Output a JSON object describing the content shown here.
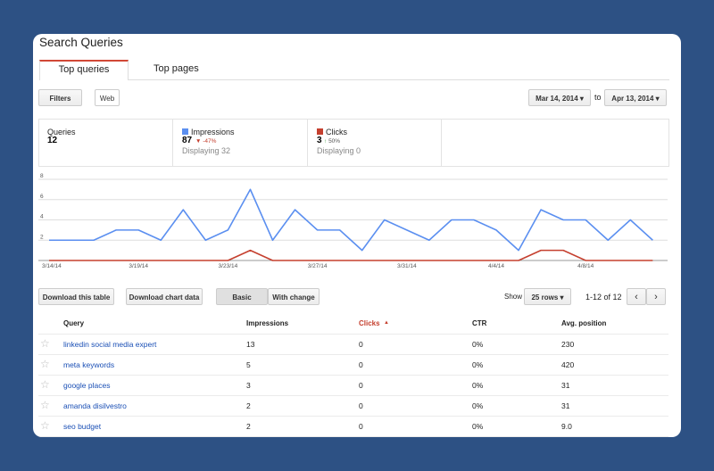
{
  "header": {
    "title": "Search Queries",
    "tabs": [
      "Top queries",
      "Top pages"
    ]
  },
  "toolbar": {
    "filters": "Filters",
    "web": "Web",
    "start_date": "Mar 14, 2014",
    "to": "to",
    "end_date": "Apr 13, 2014"
  },
  "summary": {
    "queries_label": "Queries",
    "queries": "12",
    "impressions": "87",
    "impressions_change": "-47%",
    "impressions_displaying": "Displaying 32",
    "clicks": "3",
    "clicks_change": "50%",
    "clicks_displaying": "Displaying 0"
  },
  "chart_data": {
    "type": "line",
    "categories": [
      "3/14/14",
      null,
      null,
      null,
      "3/19/14",
      null,
      null,
      null,
      "3/23/14",
      null,
      null,
      null,
      "3/27/14",
      null,
      null,
      null,
      "3/31/14",
      null,
      null,
      null,
      "4/4/14",
      null,
      null,
      null,
      "4/8/14",
      null,
      null,
      null
    ],
    "series": [
      {
        "name": "Impressions",
        "color": "#5b8ff0",
        "values": [
          2,
          2,
          2,
          3,
          3,
          2,
          5,
          2,
          3,
          7,
          2,
          5,
          3,
          3,
          1,
          4,
          3,
          2,
          4,
          4,
          3,
          1,
          5,
          4,
          4,
          2,
          4,
          2
        ]
      },
      {
        "name": "Clicks",
        "color": "#c5402f",
        "values": [
          0,
          0,
          0,
          0,
          0,
          0,
          0,
          0,
          0,
          1,
          0,
          0,
          0,
          0,
          0,
          0,
          0,
          0,
          0,
          0,
          0,
          0,
          1,
          1,
          0,
          0,
          0,
          0
        ]
      }
    ],
    "ylim": [
      0,
      8
    ],
    "yticks": [
      2,
      4,
      6,
      8
    ],
    "grid": true
  },
  "table_controls": {
    "download_table": "Download this table",
    "download_chart": "Download chart data",
    "basic": "Basic",
    "with_change": "With change",
    "show": "Show",
    "rows": "25 rows",
    "range": "1-12 of 12"
  },
  "table": {
    "columns": [
      "Query",
      "Impressions",
      "Clicks",
      "CTR",
      "Avg. position"
    ],
    "rows": [
      [
        "linkedin social media expert",
        "13",
        "0",
        "0%",
        "230"
      ],
      [
        "meta keywords",
        "5",
        "0",
        "0%",
        "420"
      ],
      [
        "google places",
        "3",
        "0",
        "0%",
        "31"
      ],
      [
        "amanda disilvestro",
        "2",
        "0",
        "0%",
        "31"
      ],
      [
        "seo budget",
        "2",
        "0",
        "0%",
        "9.0"
      ]
    ]
  }
}
